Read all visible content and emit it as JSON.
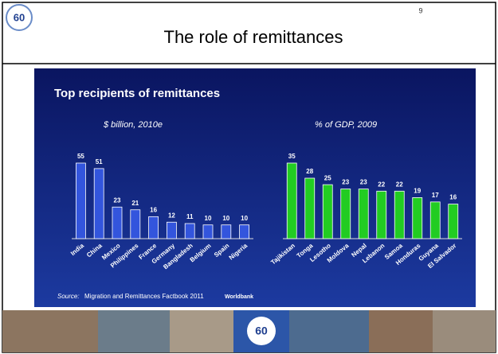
{
  "slide": {
    "title": "The role of remittances",
    "page_number": "9",
    "logo": "60"
  },
  "panel": {
    "title": "Top recipients of remittances",
    "source_label": "Source:",
    "source": "Migration and Remittances Factbook 2011",
    "credit": "Worldbank"
  },
  "chart_data": [
    {
      "type": "bar",
      "title": "$ billion, 2010e",
      "color": "#3355dd",
      "categories": [
        "India",
        "China",
        "Mexico",
        "Philippines",
        "France",
        "Germany",
        "Bangladesh",
        "Belgium",
        "Spain",
        "Nigeria"
      ],
      "values": [
        55,
        51,
        23,
        21,
        16,
        12,
        11,
        10,
        10,
        10
      ]
    },
    {
      "type": "bar",
      "title": "% of GDP, 2009",
      "color": "#22cc22",
      "categories": [
        "Tajikistan",
        "Tonga",
        "Lesotho",
        "Moldova",
        "Nepal",
        "Lebanon",
        "Samoa",
        "Honduras",
        "Guyana",
        "El Salvador"
      ],
      "values": [
        35,
        28,
        25,
        23,
        23,
        22,
        22,
        19,
        17,
        16
      ]
    }
  ]
}
